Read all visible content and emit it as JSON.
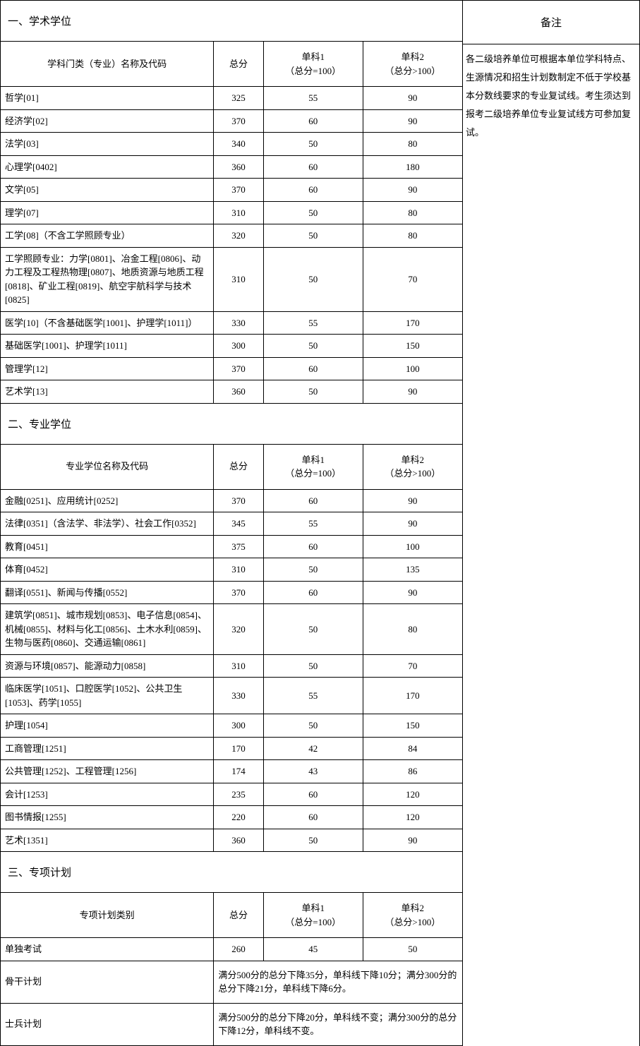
{
  "sidebar": {
    "title": "备注",
    "content": "各二级培养单位可根据本单位学科特点、生源情况和招生计划数制定不低于学校基本分数线要求的专业复试线。考生须达到报考二级培养单位专业复试线方可参加复试。"
  },
  "section1": {
    "title": "一、学术学位",
    "headers": {
      "name": "学科门类（专业）名称及代码",
      "total": "总分",
      "sub1_line1": "单科1",
      "sub1_line2": "（总分=100）",
      "sub2_line1": "单科2",
      "sub2_line2": "（总分>100）"
    },
    "rows": [
      {
        "name": "哲学[01]",
        "total": "325",
        "sub1": "55",
        "sub2": "90"
      },
      {
        "name": "经济学[02]",
        "total": "370",
        "sub1": "60",
        "sub2": "90"
      },
      {
        "name": "法学[03]",
        "total": "340",
        "sub1": "50",
        "sub2": "80"
      },
      {
        "name": "心理学[0402]",
        "total": "360",
        "sub1": "60",
        "sub2": "180"
      },
      {
        "name": "文学[05]",
        "total": "370",
        "sub1": "60",
        "sub2": "90"
      },
      {
        "name": "理学[07]",
        "total": "310",
        "sub1": "50",
        "sub2": "80"
      },
      {
        "name": "工学[08]（不含工学照顾专业）",
        "total": "320",
        "sub1": "50",
        "sub2": "80"
      },
      {
        "name": "工学照顾专业：力学[0801]、冶金工程[0806]、动力工程及工程热物理[0807]、地质资源与地质工程 [0818]、矿业工程[0819]、航空宇航科学与技术[0825]",
        "total": "310",
        "sub1": "50",
        "sub2": "70"
      },
      {
        "name": "医学[10]（不含基础医学[1001]、护理学[1011]）",
        "total": "330",
        "sub1": "55",
        "sub2": "170"
      },
      {
        "name": "基础医学[1001]、护理学[1011]",
        "total": "300",
        "sub1": "50",
        "sub2": "150"
      },
      {
        "name": "管理学[12]",
        "total": "370",
        "sub1": "60",
        "sub2": "100"
      },
      {
        "name": "艺术学[13]",
        "total": "360",
        "sub1": "50",
        "sub2": "90"
      }
    ]
  },
  "section2": {
    "title": "二、专业学位",
    "headers": {
      "name": "专业学位名称及代码",
      "total": "总分",
      "sub1_line1": "单科1",
      "sub1_line2": "（总分=100）",
      "sub2_line1": "单科2",
      "sub2_line2": "（总分>100）"
    },
    "rows": [
      {
        "name": "金融[0251]、应用统计[0252]",
        "total": "370",
        "sub1": "60",
        "sub2": "90"
      },
      {
        "name": "法律[0351]（含法学、非法学）、社会工作[0352]",
        "total": "345",
        "sub1": "55",
        "sub2": "90"
      },
      {
        "name": "教育[0451]",
        "total": "375",
        "sub1": "60",
        "sub2": "100"
      },
      {
        "name": "体育[0452]",
        "total": "310",
        "sub1": "50",
        "sub2": "135"
      },
      {
        "name": "翻译[0551]、新闻与传播[0552]",
        "total": "370",
        "sub1": "60",
        "sub2": "90"
      },
      {
        "name": "建筑学[0851]、城市规划[0853]、电子信息[0854]、机械[0855]、材料与化工[0856]、土木水利[0859]、生物与医药[0860]、交通运输[0861]",
        "total": "320",
        "sub1": "50",
        "sub2": "80"
      },
      {
        "name": "资源与环境[0857]、能源动力[0858]",
        "total": "310",
        "sub1": "50",
        "sub2": "70"
      },
      {
        "name": "临床医学[1051]、口腔医学[1052]、公共卫生[1053]、药学[1055]",
        "total": "330",
        "sub1": "55",
        "sub2": "170"
      },
      {
        "name": "护理[1054]",
        "total": "300",
        "sub1": "50",
        "sub2": "150"
      },
      {
        "name": "工商管理[1251]",
        "total": "170",
        "sub1": "42",
        "sub2": "84"
      },
      {
        "name": "公共管理[1252]、工程管理[1256]",
        "total": "174",
        "sub1": "43",
        "sub2": "86"
      },
      {
        "name": "会计[1253]",
        "total": "235",
        "sub1": "60",
        "sub2": "120"
      },
      {
        "name": "图书情报[1255]",
        "total": "220",
        "sub1": "60",
        "sub2": "120"
      },
      {
        "name": "艺术[1351]",
        "total": "360",
        "sub1": "50",
        "sub2": "90"
      }
    ]
  },
  "section3": {
    "title": "三、专项计划",
    "headers": {
      "name": "专项计划类别",
      "total": "总分",
      "sub1_line1": "单科1",
      "sub1_line2": "（总分=100）",
      "sub2_line1": "单科2",
      "sub2_line2": "（总分>100）"
    },
    "row1": {
      "name": "单独考试",
      "total": "260",
      "sub1": "45",
      "sub2": "50"
    },
    "row2": {
      "name": "骨干计划",
      "desc": "满分500分的总分下降35分，单科线下降10分；满分300分的总分下降21分，单科线下降6分。"
    },
    "row3": {
      "name": "士兵计划",
      "desc": "满分500分的总分下降20分，单科线不变；满分300分的总分下降12分，单科线不变。"
    }
  }
}
